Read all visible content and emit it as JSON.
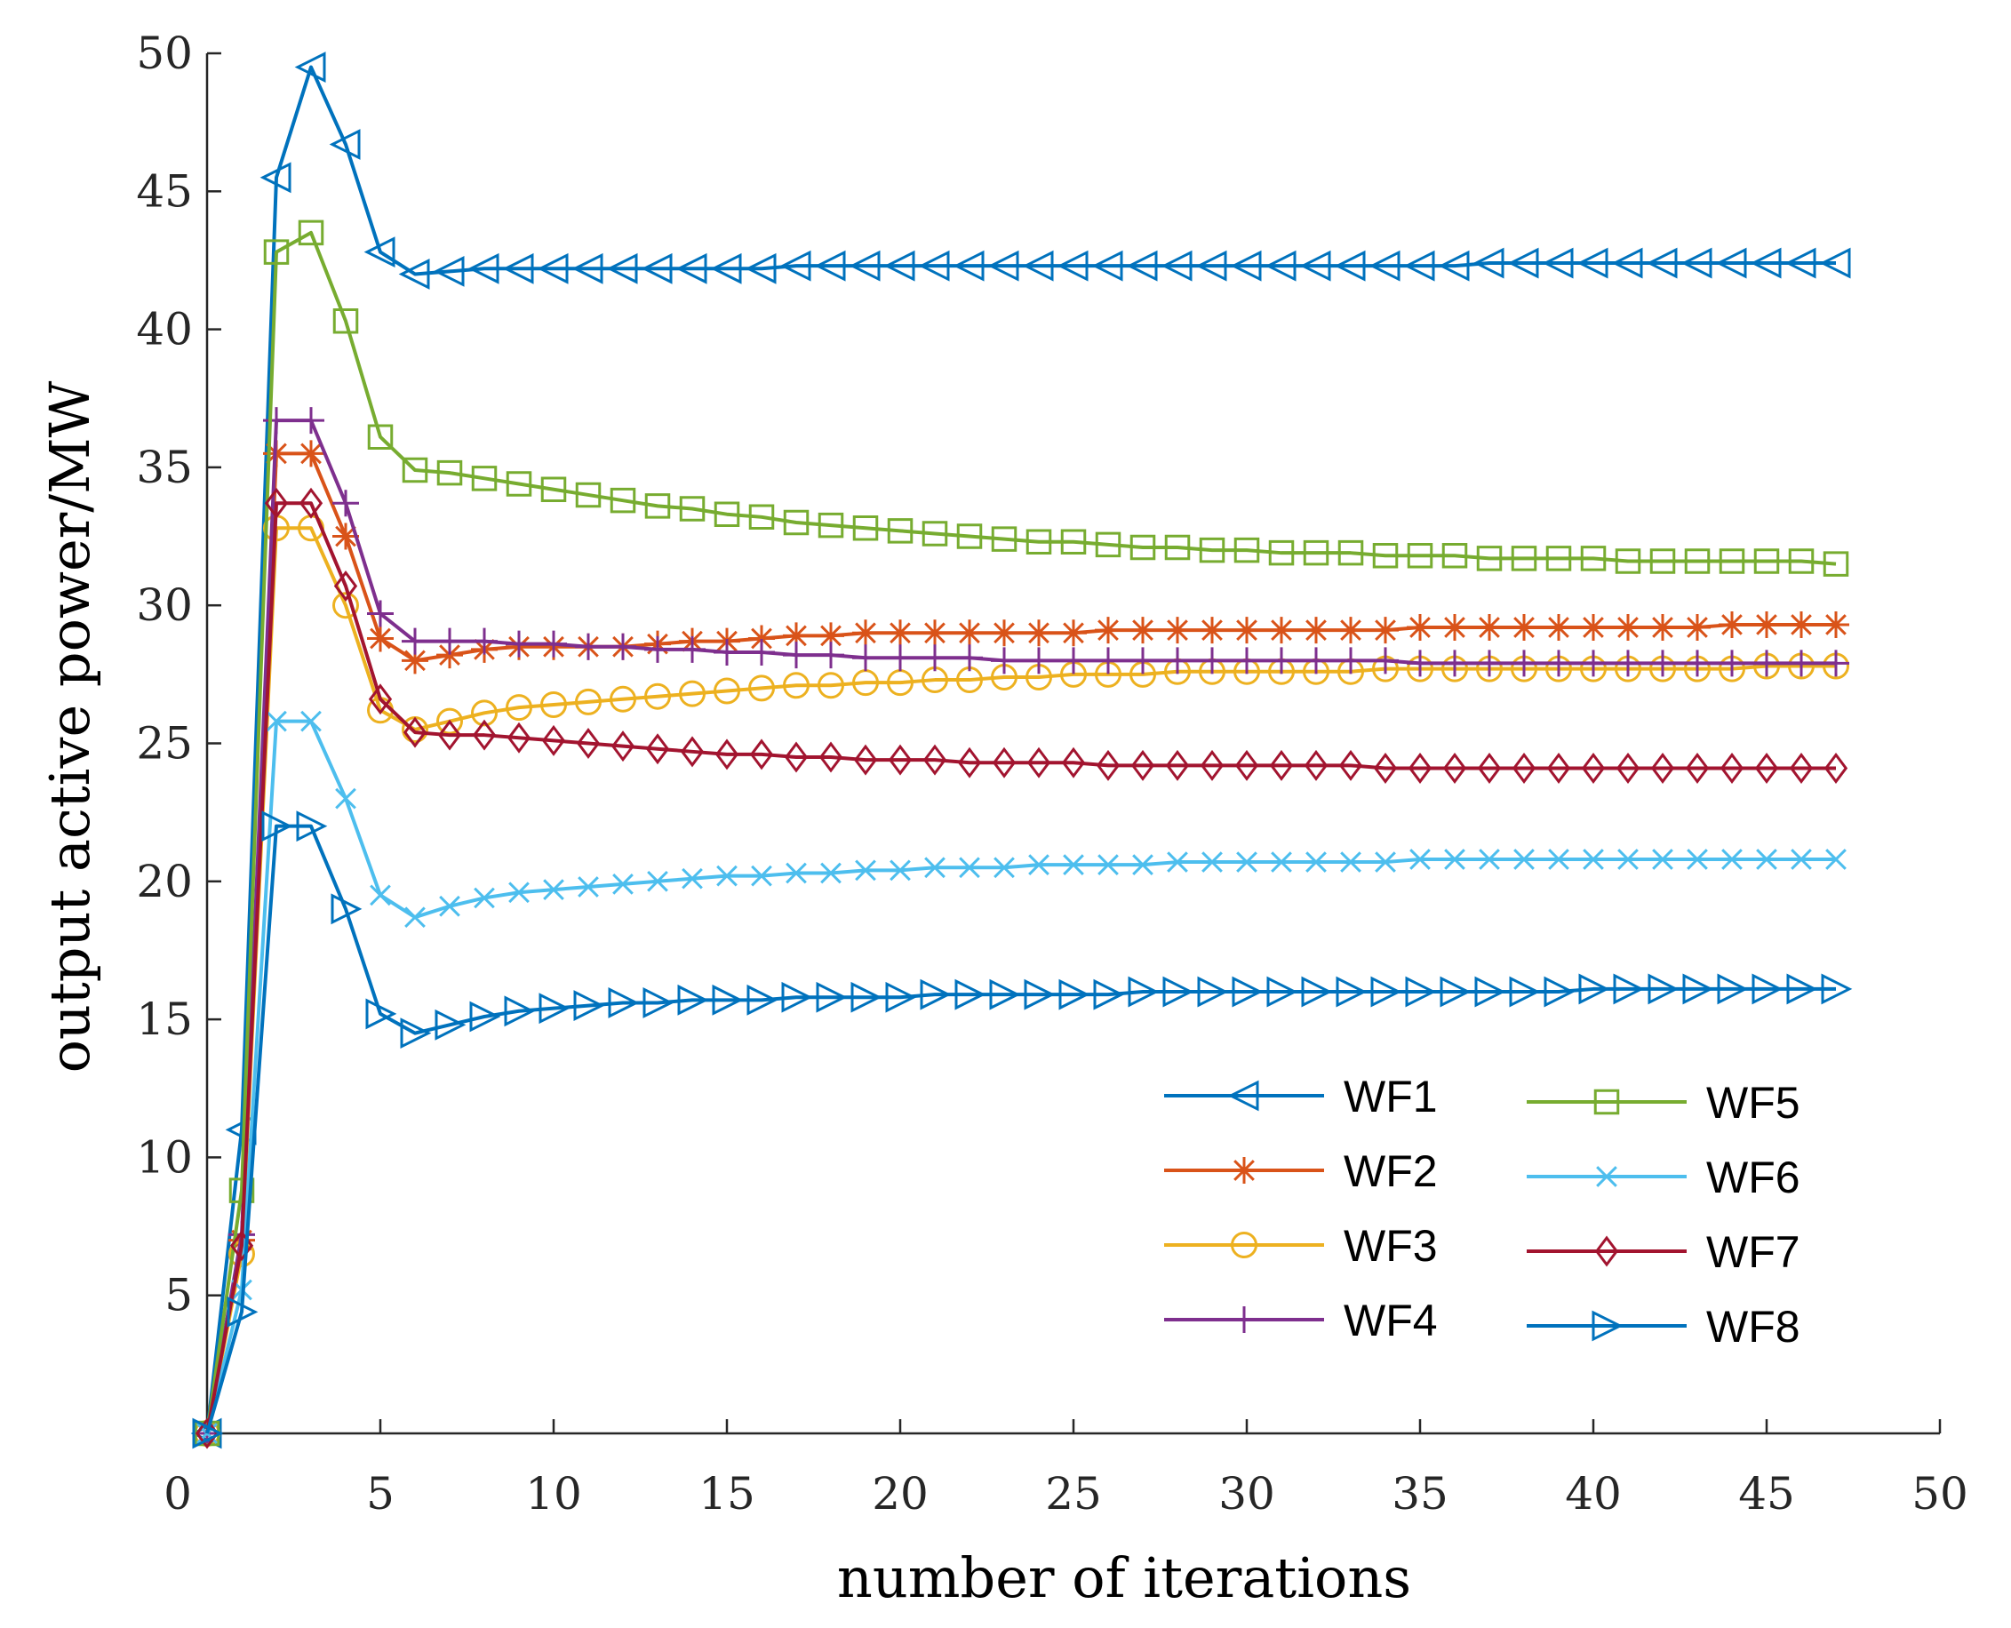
{
  "chart_data": {
    "type": "line",
    "title": "",
    "xlabel": "number of iterations",
    "ylabel": "output active power/MW",
    "xlim": [
      0,
      50
    ],
    "ylim": [
      0,
      50
    ],
    "xticks": [
      5,
      10,
      15,
      20,
      25,
      30,
      35,
      40,
      45,
      50
    ],
    "yticks": [
      5,
      10,
      15,
      20,
      25,
      30,
      35,
      40,
      45,
      50
    ],
    "origin_label": "0",
    "grid": false,
    "legend_position": "lower-right",
    "x": [
      0,
      1,
      2,
      3,
      4,
      5,
      6,
      7,
      8,
      9,
      10,
      11,
      12,
      13,
      14,
      15,
      16,
      17,
      18,
      19,
      20,
      21,
      22,
      23,
      24,
      25,
      26,
      27,
      28,
      29,
      30,
      31,
      32,
      33,
      34,
      35,
      36,
      37,
      38,
      39,
      40,
      41,
      42,
      43,
      44,
      45,
      46,
      47
    ],
    "series": [
      {
        "name": "WF1",
        "color": "#0072BD",
        "marker": "triangle-left",
        "values": [
          0,
          11,
          45.5,
          49.5,
          46.7,
          42.8,
          42,
          42.1,
          42.2,
          42.2,
          42.2,
          42.2,
          42.2,
          42.2,
          42.2,
          42.2,
          42.2,
          42.3,
          42.3,
          42.3,
          42.3,
          42.3,
          42.3,
          42.3,
          42.3,
          42.3,
          42.3,
          42.3,
          42.3,
          42.3,
          42.3,
          42.3,
          42.3,
          42.3,
          42.3,
          42.3,
          42.3,
          42.4,
          42.4,
          42.4,
          42.4,
          42.4,
          42.4,
          42.4,
          42.4,
          42.4,
          42.4,
          42.4
        ]
      },
      {
        "name": "WF2",
        "color": "#D95319",
        "marker": "asterisk",
        "values": [
          0,
          7,
          35.5,
          35.5,
          32.5,
          28.8,
          28,
          28.2,
          28.4,
          28.5,
          28.5,
          28.5,
          28.5,
          28.6,
          28.7,
          28.7,
          28.8,
          28.9,
          28.9,
          29,
          29,
          29,
          29,
          29,
          29,
          29,
          29.1,
          29.1,
          29.1,
          29.1,
          29.1,
          29.1,
          29.1,
          29.1,
          29.1,
          29.2,
          29.2,
          29.2,
          29.2,
          29.2,
          29.2,
          29.2,
          29.2,
          29.2,
          29.3,
          29.3,
          29.3,
          29.3
        ]
      },
      {
        "name": "WF3",
        "color": "#EDB120",
        "marker": "circle",
        "values": [
          0,
          6.5,
          32.8,
          32.8,
          30,
          26.2,
          25.5,
          25.8,
          26.1,
          26.3,
          26.4,
          26.5,
          26.6,
          26.7,
          26.8,
          26.9,
          27,
          27.1,
          27.1,
          27.2,
          27.2,
          27.3,
          27.3,
          27.4,
          27.4,
          27.5,
          27.5,
          27.5,
          27.6,
          27.6,
          27.6,
          27.6,
          27.6,
          27.6,
          27.7,
          27.7,
          27.7,
          27.7,
          27.7,
          27.7,
          27.7,
          27.7,
          27.7,
          27.7,
          27.7,
          27.8,
          27.8,
          27.8
        ]
      },
      {
        "name": "WF4",
        "color": "#7E2F8E",
        "marker": "plus",
        "values": [
          0,
          7.2,
          36.7,
          36.7,
          33.7,
          29.7,
          28.7,
          28.7,
          28.7,
          28.6,
          28.6,
          28.5,
          28.5,
          28.4,
          28.4,
          28.3,
          28.3,
          28.2,
          28.2,
          28.1,
          28.1,
          28.1,
          28.1,
          28,
          28,
          28,
          28,
          28,
          28,
          28,
          28,
          28,
          28,
          28,
          28,
          27.9,
          27.9,
          27.9,
          27.9,
          27.9,
          27.9,
          27.9,
          27.9,
          27.9,
          27.9,
          27.9,
          27.9,
          27.9
        ]
      },
      {
        "name": "WF5",
        "color": "#77AC30",
        "marker": "square",
        "values": [
          0,
          8.8,
          42.8,
          43.5,
          40.3,
          36.1,
          34.9,
          34.8,
          34.6,
          34.4,
          34.2,
          34,
          33.8,
          33.6,
          33.5,
          33.3,
          33.2,
          33,
          32.9,
          32.8,
          32.7,
          32.6,
          32.5,
          32.4,
          32.3,
          32.3,
          32.2,
          32.1,
          32.1,
          32,
          32,
          31.9,
          31.9,
          31.9,
          31.8,
          31.8,
          31.8,
          31.7,
          31.7,
          31.7,
          31.7,
          31.6,
          31.6,
          31.6,
          31.6,
          31.6,
          31.6,
          31.5
        ]
      },
      {
        "name": "WF6",
        "color": "#4DBEEE",
        "marker": "x",
        "values": [
          0,
          5.2,
          25.8,
          25.8,
          23,
          19.5,
          18.7,
          19.1,
          19.4,
          19.6,
          19.7,
          19.8,
          19.9,
          20,
          20.1,
          20.2,
          20.2,
          20.3,
          20.3,
          20.4,
          20.4,
          20.5,
          20.5,
          20.5,
          20.6,
          20.6,
          20.6,
          20.6,
          20.7,
          20.7,
          20.7,
          20.7,
          20.7,
          20.7,
          20.7,
          20.8,
          20.8,
          20.8,
          20.8,
          20.8,
          20.8,
          20.8,
          20.8,
          20.8,
          20.8,
          20.8,
          20.8,
          20.8
        ]
      },
      {
        "name": "WF7",
        "color": "#A2142F",
        "marker": "diamond",
        "values": [
          0,
          6.8,
          33.7,
          33.7,
          30.7,
          26.6,
          25.4,
          25.3,
          25.3,
          25.2,
          25.1,
          25,
          24.9,
          24.8,
          24.7,
          24.6,
          24.6,
          24.5,
          24.5,
          24.4,
          24.4,
          24.4,
          24.3,
          24.3,
          24.3,
          24.3,
          24.2,
          24.2,
          24.2,
          24.2,
          24.2,
          24.2,
          24.2,
          24.2,
          24.1,
          24.1,
          24.1,
          24.1,
          24.1,
          24.1,
          24.1,
          24.1,
          24.1,
          24.1,
          24.1,
          24.1,
          24.1,
          24.1
        ]
      },
      {
        "name": "WF8",
        "color": "#0072BD",
        "marker": "triangle-right",
        "values": [
          0,
          4.4,
          22,
          22,
          19,
          15.2,
          14.5,
          14.8,
          15.1,
          15.3,
          15.4,
          15.5,
          15.6,
          15.6,
          15.7,
          15.7,
          15.7,
          15.8,
          15.8,
          15.8,
          15.8,
          15.9,
          15.9,
          15.9,
          15.9,
          15.9,
          15.9,
          16,
          16,
          16,
          16,
          16,
          16,
          16,
          16,
          16,
          16,
          16,
          16,
          16,
          16.1,
          16.1,
          16.1,
          16.1,
          16.1,
          16.1,
          16.1,
          16.1
        ]
      }
    ]
  }
}
